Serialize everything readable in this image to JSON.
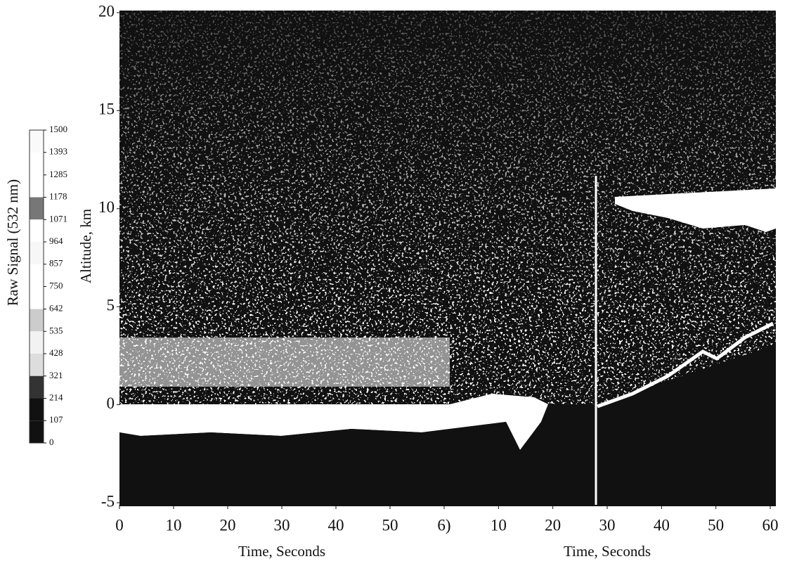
{
  "chart_data": {
    "type": "heatmap",
    "ylabel": "Altitude, km",
    "ylim": [
      -5,
      20
    ],
    "yticks": [
      20,
      15,
      10,
      5,
      0,
      -5
    ],
    "panels": [
      {
        "xlabel": "Time, Seconds",
        "xlim": [
          0,
          60
        ],
        "xticks": [
          0,
          10,
          20,
          30,
          40,
          50,
          {
            "value": 60,
            "label": "6)"
          }
        ]
      },
      {
        "xlabel": "Time, Seconds",
        "xlim": [
          0,
          60
        ],
        "xticks": [
          10,
          20,
          30,
          40,
          50,
          60
        ]
      }
    ],
    "colorbar": {
      "label": "Raw Signal (532 nm)",
      "lim": [
        0,
        1500
      ],
      "ticks": [
        1500,
        1393,
        1285,
        1178,
        1071,
        964,
        857,
        750,
        642,
        535,
        428,
        321,
        214,
        107,
        0
      ]
    }
  }
}
